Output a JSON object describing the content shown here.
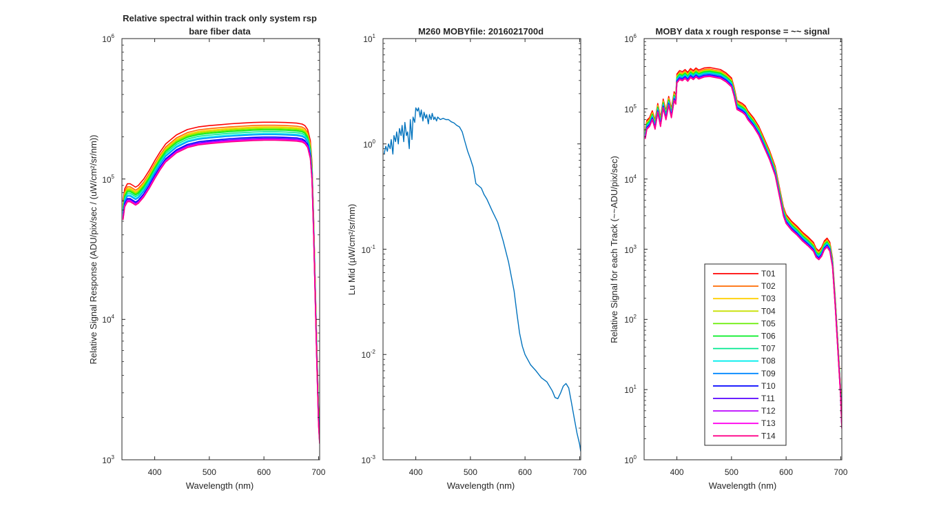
{
  "figure": {
    "panels": [
      {
        "title_lines": [
          "Relative spectral within track only system rsp",
          "bare fiber data"
        ],
        "xlabel": "Wavelength (nm)",
        "ylabel": "Relative Signal Response (ADU/pix/sec / (uW/cm²/sr/nm))",
        "xticks": [
          "400",
          "500",
          "600",
          "700"
        ],
        "yticks": [
          {
            "base": "10",
            "exp": "3"
          },
          {
            "base": "10",
            "exp": "4"
          },
          {
            "base": "10",
            "exp": "5"
          },
          {
            "base": "10",
            "exp": "6"
          }
        ]
      },
      {
        "title_lines": [
          "M260 MOBYfile: 2016021700d"
        ],
        "xlabel": "Wavelength (nm)",
        "ylabel": "Lu Mid  (µW/cm²/sr/nm)",
        "xticks": [
          "400",
          "500",
          "600",
          "700"
        ],
        "yticks": [
          {
            "base": "10",
            "exp": "-3"
          },
          {
            "base": "10",
            "exp": "-2"
          },
          {
            "base": "10",
            "exp": "-1"
          },
          {
            "base": "10",
            "exp": "0"
          },
          {
            "base": "10",
            "exp": "1"
          }
        ]
      },
      {
        "title_lines": [
          "MOBY data x rough response = ~~ signal"
        ],
        "xlabel": "Wavelength (nm)",
        "ylabel": "Relative Signal for each Track (~~ADU/pix/sec)",
        "xticks": [
          "400",
          "500",
          "600",
          "700"
        ],
        "yticks": [
          {
            "base": "10",
            "exp": "0"
          },
          {
            "base": "10",
            "exp": "1"
          },
          {
            "base": "10",
            "exp": "2"
          },
          {
            "base": "10",
            "exp": "3"
          },
          {
            "base": "10",
            "exp": "4"
          },
          {
            "base": "10",
            "exp": "5"
          },
          {
            "base": "10",
            "exp": "6"
          }
        ]
      }
    ]
  },
  "chart_data": [
    {
      "type": "line",
      "title": "Relative spectral within track only system rsp bare fiber data",
      "xlabel": "Wavelength (nm)",
      "ylabel": "Relative Signal Response (ADU/pix/sec / (uW/cm²/sr/nm))",
      "xlim": [
        340,
        702
      ],
      "ylim": [
        1000,
        1000000
      ],
      "yscale": "log",
      "x": [
        342,
        345,
        350,
        355,
        360,
        365,
        370,
        380,
        390,
        400,
        410,
        420,
        440,
        460,
        480,
        500,
        520,
        540,
        560,
        580,
        600,
        620,
        640,
        660,
        670,
        675,
        680,
        685,
        688,
        691,
        694,
        697,
        700,
        702
      ],
      "base_values": [
        55000,
        68000,
        74000,
        74000,
        72000,
        70000,
        72000,
        80000,
        92000,
        108000,
        125000,
        142000,
        165000,
        180000,
        188000,
        192000,
        195000,
        198000,
        200000,
        202000,
        203000,
        203000,
        202000,
        200000,
        197000,
        192000,
        180000,
        150000,
        105000,
        42000,
        14000,
        5000,
        1900,
        1400
      ],
      "series": [
        {
          "name": "T01",
          "factor": 1.25,
          "color": "#ff0000"
        },
        {
          "name": "T02",
          "factor": 1.19,
          "color": "#ff6a00"
        },
        {
          "name": "T03",
          "factor": 1.16,
          "color": "#ffd000"
        },
        {
          "name": "T04",
          "factor": 1.14,
          "color": "#c8e000"
        },
        {
          "name": "T05",
          "factor": 1.12,
          "color": "#66ee00"
        },
        {
          "name": "T06",
          "factor": 1.1,
          "color": "#00ee22"
        },
        {
          "name": "T07",
          "factor": 1.07,
          "color": "#00e890"
        },
        {
          "name": "T08",
          "factor": 1.04,
          "color": "#00eeee"
        },
        {
          "name": "T09",
          "factor": 1.02,
          "color": "#0088ff"
        },
        {
          "name": "T10",
          "factor": 0.98,
          "color": "#0000ff"
        },
        {
          "name": "T11",
          "factor": 0.96,
          "color": "#5500ff"
        },
        {
          "name": "T12",
          "factor": 0.95,
          "color": "#bb00ff"
        },
        {
          "name": "T13",
          "factor": 0.94,
          "color": "#ff00ee"
        },
        {
          "name": "T14",
          "factor": 0.93,
          "color": "#ff0088"
        }
      ]
    },
    {
      "type": "line",
      "title": "M260 MOBYfile: 2016021700d",
      "xlabel": "Wavelength (nm)",
      "ylabel": "Lu Mid  (µW/cm²/sr/nm)",
      "xlim": [
        340,
        702
      ],
      "ylim": [
        0.001,
        10
      ],
      "yscale": "log",
      "series": [
        {
          "color": "#0072bd",
          "x": [
            342,
            345,
            348,
            350,
            353,
            355,
            358,
            360,
            363,
            365,
            368,
            370,
            373,
            375,
            378,
            380,
            383,
            385,
            388,
            390,
            393,
            395,
            398,
            400,
            403,
            405,
            408,
            410,
            413,
            415,
            418,
            420,
            423,
            425,
            428,
            430,
            433,
            435,
            438,
            440,
            445,
            450,
            455,
            460,
            465,
            470,
            475,
            480,
            485,
            490,
            495,
            500,
            505,
            510,
            515,
            520,
            525,
            530,
            540,
            550,
            560,
            570,
            580,
            585,
            590,
            595,
            600,
            610,
            620,
            630,
            640,
            650,
            655,
            660,
            665,
            670,
            675,
            680,
            685,
            690,
            695,
            700,
            702
          ],
          "y": [
            0.8,
            0.95,
            0.85,
            1.0,
            0.9,
            1.1,
            0.8,
            1.2,
            1.05,
            1.3,
            1.0,
            1.4,
            1.2,
            1.5,
            1.05,
            1.6,
            1.2,
            1.3,
            0.9,
            1.7,
            1.1,
            1.8,
            1.6,
            2.2,
            2.05,
            2.2,
            1.8,
            2.1,
            1.65,
            2.0,
            1.75,
            1.9,
            1.55,
            1.9,
            1.7,
            1.95,
            1.7,
            1.8,
            1.65,
            1.8,
            1.7,
            1.75,
            1.7,
            1.7,
            1.62,
            1.58,
            1.5,
            1.45,
            1.3,
            1.05,
            0.85,
            0.72,
            0.6,
            0.42,
            0.4,
            0.38,
            0.33,
            0.3,
            0.23,
            0.18,
            0.12,
            0.075,
            0.04,
            0.025,
            0.016,
            0.012,
            0.01,
            0.008,
            0.007,
            0.006,
            0.0055,
            0.0045,
            0.0039,
            0.0038,
            0.0043,
            0.005,
            0.0053,
            0.0048,
            0.0035,
            0.0025,
            0.0018,
            0.0014,
            0.0012
          ]
        }
      ]
    },
    {
      "type": "line",
      "title": "MOBY data x rough response = ~~ signal",
      "xlabel": "Wavelength (nm)",
      "ylabel": "Relative Signal for each Track (~~ADU/pix/sec)",
      "xlim": [
        340,
        702
      ],
      "ylim": [
        1,
        1000000
      ],
      "yscale": "log",
      "x": [
        342,
        345,
        350,
        355,
        360,
        365,
        370,
        375,
        380,
        385,
        390,
        395,
        398,
        400,
        405,
        410,
        415,
        420,
        425,
        430,
        435,
        440,
        450,
        460,
        470,
        480,
        490,
        500,
        505,
        510,
        515,
        520,
        525,
        530,
        540,
        550,
        560,
        570,
        580,
        590,
        595,
        600,
        610,
        620,
        630,
        640,
        650,
        655,
        660,
        665,
        670,
        675,
        680,
        685,
        690,
        695,
        700,
        702
      ],
      "base_values": [
        40000,
        55000,
        60000,
        75000,
        55000,
        95000,
        60000,
        110000,
        75000,
        120000,
        80000,
        140000,
        125000,
        250000,
        280000,
        270000,
        290000,
        265000,
        300000,
        280000,
        305000,
        285000,
        305000,
        310000,
        300000,
        290000,
        260000,
        220000,
        160000,
        105000,
        100000,
        95000,
        88000,
        75000,
        60000,
        45000,
        30000,
        20000,
        12000,
        5000,
        3200,
        2500,
        2000,
        1700,
        1400,
        1200,
        1000,
        820,
        760,
        850,
        1050,
        1150,
        1000,
        600,
        160,
        35,
        8,
        3
      ],
      "legend": {
        "location": "inside lower right",
        "box": true
      },
      "series": [
        {
          "name": "T01",
          "factor": 1.25,
          "color": "#ff0000"
        },
        {
          "name": "T02",
          "factor": 1.19,
          "color": "#ff6a00"
        },
        {
          "name": "T03",
          "factor": 1.16,
          "color": "#ffd000"
        },
        {
          "name": "T04",
          "factor": 1.14,
          "color": "#c8e000"
        },
        {
          "name": "T05",
          "factor": 1.12,
          "color": "#66ee00"
        },
        {
          "name": "T06",
          "factor": 1.1,
          "color": "#00ee22"
        },
        {
          "name": "T07",
          "factor": 1.07,
          "color": "#00e890"
        },
        {
          "name": "T08",
          "factor": 1.04,
          "color": "#00eeee"
        },
        {
          "name": "T09",
          "factor": 1.02,
          "color": "#0088ff"
        },
        {
          "name": "T10",
          "factor": 0.98,
          "color": "#0000ff"
        },
        {
          "name": "T11",
          "factor": 0.96,
          "color": "#5500ff"
        },
        {
          "name": "T12",
          "factor": 0.95,
          "color": "#bb00ff"
        },
        {
          "name": "T13",
          "factor": 0.94,
          "color": "#ff00ee"
        },
        {
          "name": "T14",
          "factor": 0.93,
          "color": "#ff0088"
        }
      ]
    }
  ]
}
